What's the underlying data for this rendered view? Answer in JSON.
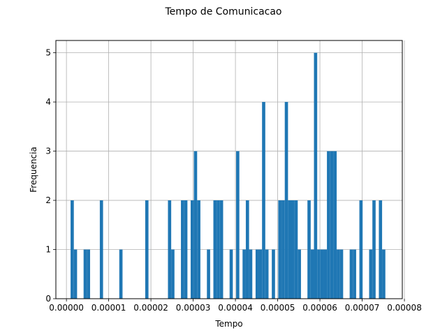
{
  "chart_data": {
    "type": "bar",
    "title": "Tempo de Comunicacao",
    "xlabel": "Tempo",
    "ylabel": "Frequencia",
    "xlim": [
      -2.5e-06,
      7.95e-05
    ],
    "ylim": [
      0,
      5.25
    ],
    "grid": true,
    "bar_color": "#1f77b4",
    "bin_width": 7.68e-07,
    "x_ticks": [
      0,
      1e-05,
      2e-05,
      3e-05,
      4e-05,
      5e-05,
      6e-05,
      7e-05,
      8e-05
    ],
    "x_tick_labels": [
      "0.00000",
      "0.00001",
      "0.00002",
      "0.00003",
      "0.00004",
      "0.00005",
      "0.00006",
      "0.00007",
      "0.00008"
    ],
    "y_ticks": [
      0,
      1,
      2,
      3,
      4,
      5
    ],
    "y_tick_labels": [
      "0",
      "1",
      "2",
      "3",
      "4",
      "5"
    ],
    "bins_left": [
      9.8e-07,
      1.75e-06,
      4.06e-06,
      4.83e-06,
      7.9e-06,
      1.251e-05,
      1.865e-05,
      2.403e-05,
      2.48e-05,
      2.71e-05,
      2.787e-05,
      2.94e-05,
      3.017e-05,
      3.094e-05,
      3.325e-05,
      3.478e-05,
      3.555e-05,
      3.632e-05,
      3.862e-05,
      4.016e-05,
      4.169e-05,
      4.246e-05,
      4.323e-05,
      4.477e-05,
      4.553e-05,
      4.63e-05,
      4.707e-05,
      4.861e-05,
      5.014e-05,
      5.091e-05,
      5.168e-05,
      5.245e-05,
      5.321e-05,
      5.398e-05,
      5.475e-05,
      5.705e-05,
      5.782e-05,
      5.859e-05,
      5.936e-05,
      6.013e-05,
      6.089e-05,
      6.166e-05,
      6.243e-05,
      6.32e-05,
      6.397e-05,
      6.473e-05,
      6.704e-05,
      6.781e-05,
      6.934e-05,
      7.165e-05,
      7.242e-05,
      7.395e-05,
      7.472e-05
    ],
    "counts": [
      2,
      1,
      1,
      1,
      2,
      1,
      2,
      2,
      1,
      2,
      2,
      2,
      3,
      2,
      1,
      2,
      2,
      2,
      1,
      3,
      1,
      2,
      1,
      1,
      1,
      4,
      1,
      1,
      2,
      2,
      4,
      2,
      2,
      2,
      1,
      2,
      1,
      5,
      1,
      1,
      1,
      3,
      3,
      3,
      1,
      1,
      1,
      1,
      2,
      1,
      2,
      2,
      1
    ]
  }
}
